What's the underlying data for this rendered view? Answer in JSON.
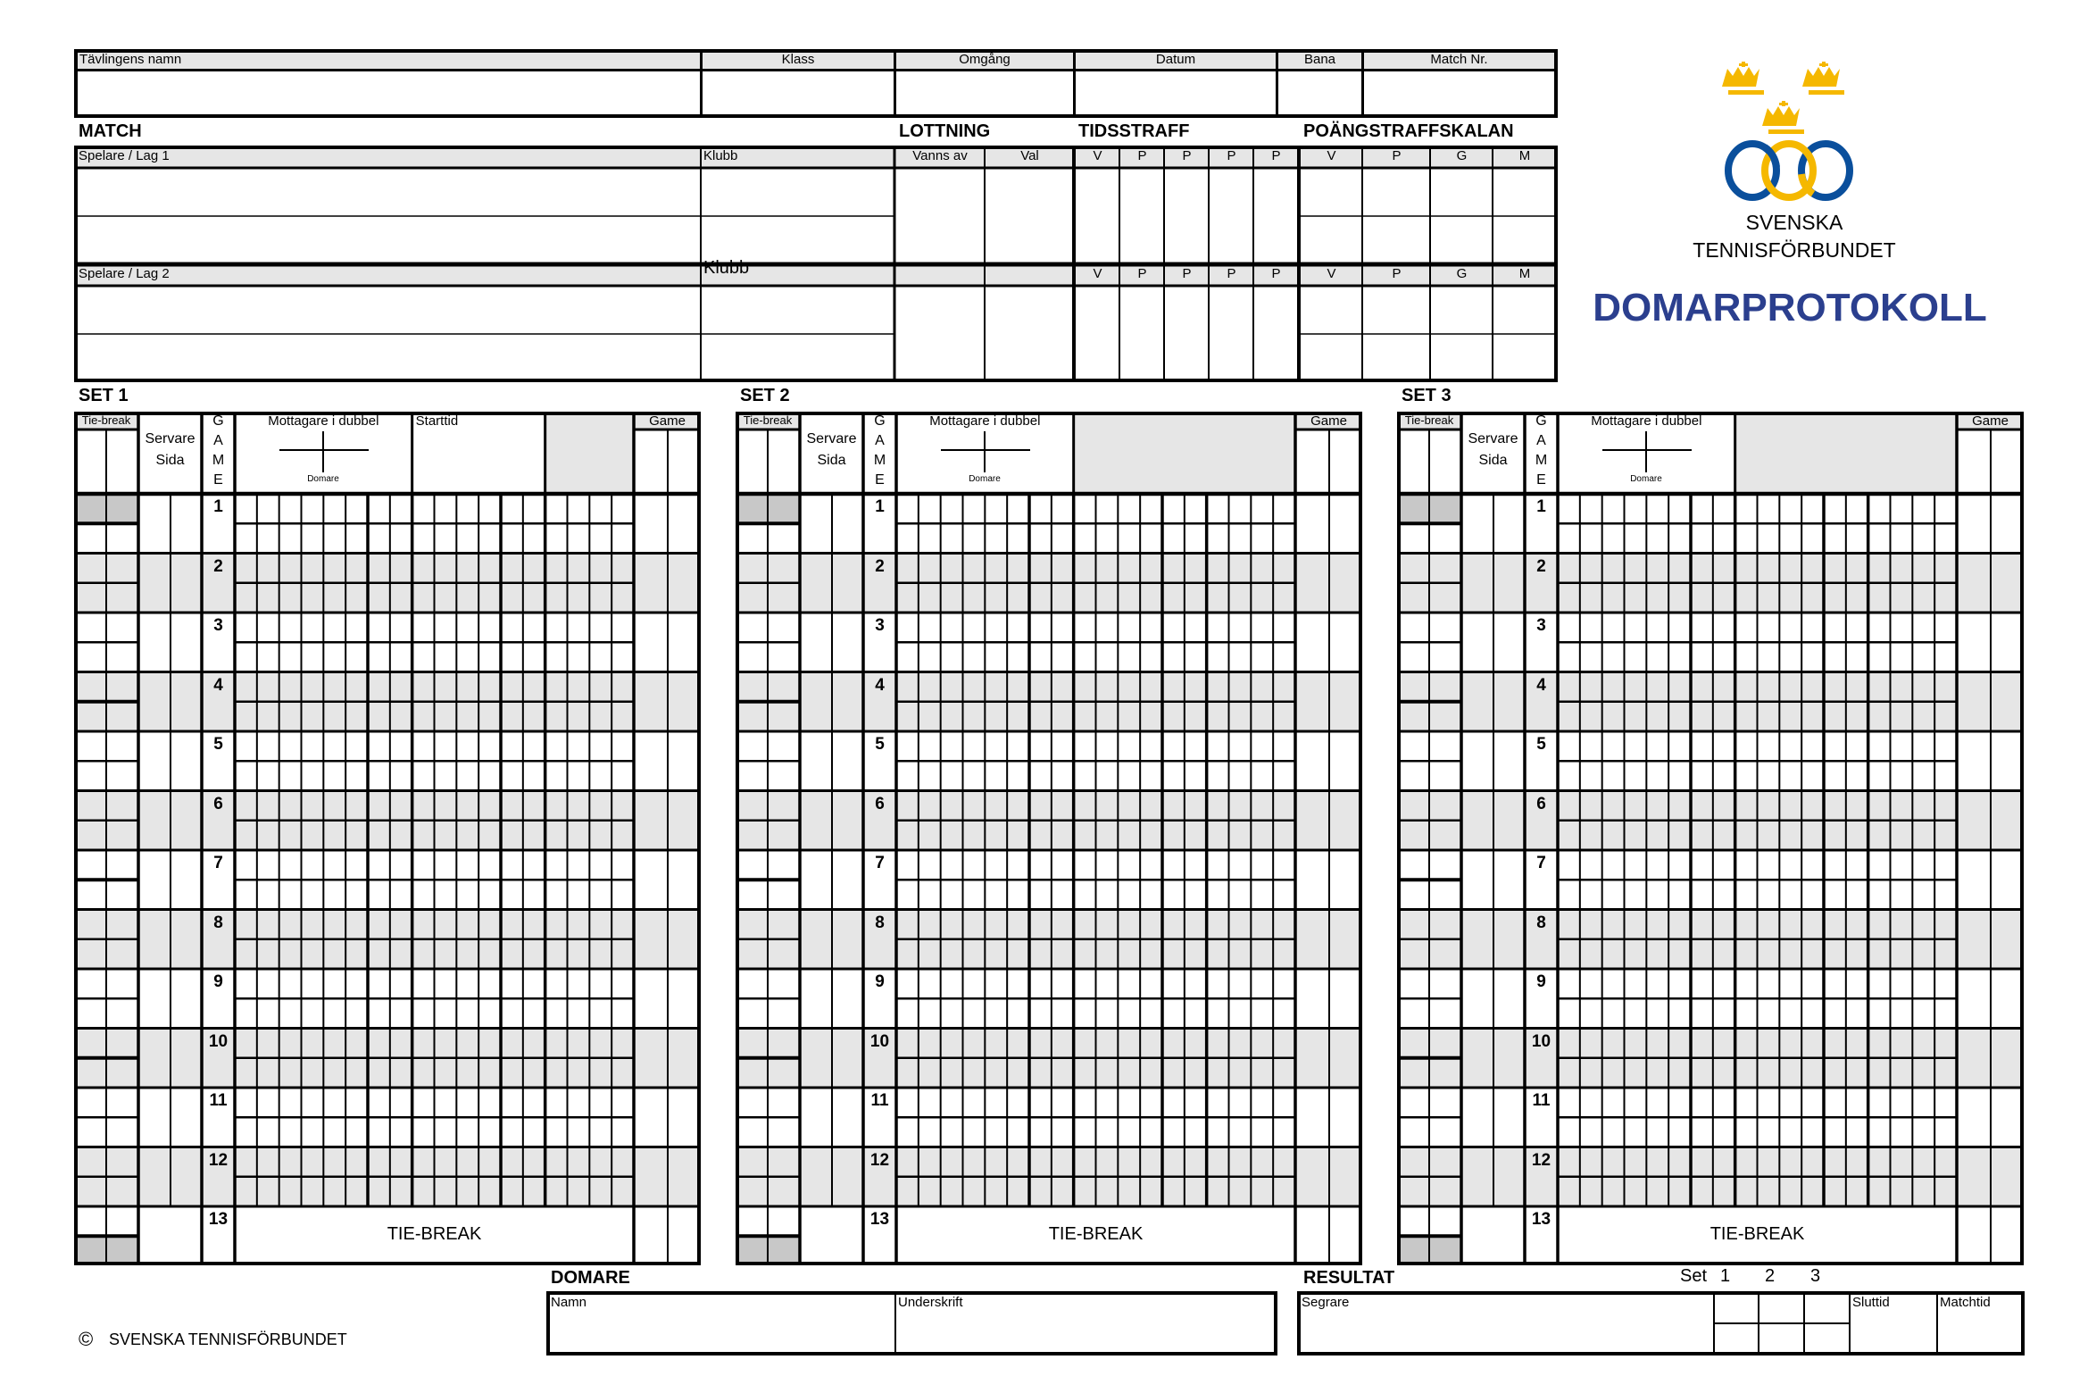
{
  "header_table": {
    "columns": [
      {
        "label": "Tävlingens namn"
      },
      {
        "label": "Klass"
      },
      {
        "label": "Omgång"
      },
      {
        "label": "Datum"
      },
      {
        "label": "Bana"
      },
      {
        "label": "Match Nr."
      }
    ]
  },
  "sections": {
    "match": "MATCH",
    "lottning": "LOTTNING",
    "tidsstraff": "TIDSSTRAFF",
    "poangstraff": "POÄNGSTRAFFSKALAN"
  },
  "match_table": {
    "player1_label": "Spelare / Lag 1",
    "club1_label": "Klubb",
    "player2_label": "Spelare / Lag 2",
    "club2_label": "Klubb",
    "lottning": [
      "Vanns av",
      "Val"
    ],
    "tidsstraff": [
      "V",
      "P",
      "P",
      "P",
      "P"
    ],
    "poangstraff": [
      "V",
      "P",
      "G",
      "M"
    ]
  },
  "logo": {
    "org_line1": "SVENSKA",
    "org_line2": "TENNISFÖRBUNDET",
    "colors": {
      "crown": "#f5b800",
      "ring_blue": "#0a4f9c",
      "ring_gold": "#f5b800"
    }
  },
  "title": "DOMARPROTOKOLL",
  "title_color": "#2b3f8e",
  "set_common": {
    "tiebreak": "Tie-break",
    "servare": "Servare",
    "sida": "Sida",
    "game_letters": [
      "G",
      "A",
      "M",
      "E"
    ],
    "mottagare": "Mottagare i dubbel",
    "domare": "Domare",
    "game": "Game",
    "tie_break_row": "TIE-BREAK",
    "game_numbers": [
      "1",
      "2",
      "3",
      "4",
      "5",
      "6",
      "7",
      "8",
      "9",
      "10",
      "11",
      "12",
      "13"
    ]
  },
  "sets": [
    {
      "label": "SET 1",
      "starttid": "Starttid"
    },
    {
      "label": "SET 2"
    },
    {
      "label": "SET 3"
    }
  ],
  "domare": {
    "title": "DOMARE",
    "namn": "Namn",
    "underskrift": "Underskrift"
  },
  "resultat": {
    "title": "RESULTAT",
    "set_label": "Set",
    "set_numbers": [
      "1",
      "2",
      "3"
    ],
    "segrare": "Segrare",
    "sluttid": "Sluttid",
    "matchtid": "Matchtid"
  },
  "footer": {
    "copyright_symbol": "©",
    "text": "SVENSKA TENNISFÖRBUNDET"
  }
}
